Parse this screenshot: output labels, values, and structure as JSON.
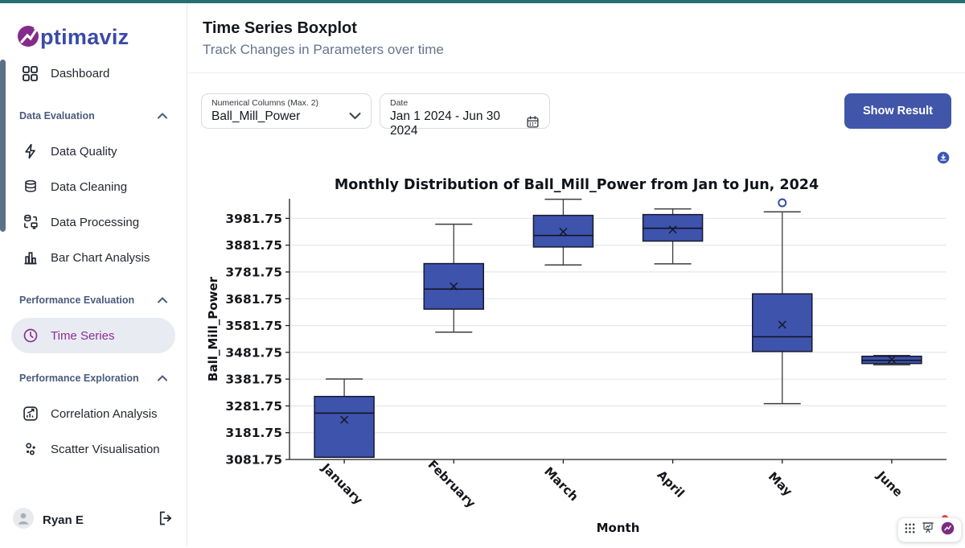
{
  "brand": {
    "name": "ptimaviz",
    "logo_icon": "optimaviz-logo"
  },
  "sidebar": {
    "dashboard_label": "Dashboard",
    "sections": [
      {
        "label": "Data Evaluation",
        "items": [
          {
            "label": "Data Quality",
            "icon": "zap-icon"
          },
          {
            "label": "Data Cleaning",
            "icon": "database-icon"
          },
          {
            "label": "Data Processing",
            "icon": "data-transfer-icon"
          },
          {
            "label": "Bar Chart Analysis",
            "icon": "bar-chart-icon"
          }
        ]
      },
      {
        "label": "Performance Evaluation",
        "items": [
          {
            "label": "Time Series",
            "icon": "clock-icon",
            "active": true
          }
        ]
      },
      {
        "label": "Performance Exploration",
        "items": [
          {
            "label": "Correlation Analysis",
            "icon": "correlation-icon"
          },
          {
            "label": "Scatter Visualisation",
            "icon": "scatter-icon"
          }
        ]
      }
    ],
    "user": {
      "name": "Ryan E",
      "logout_icon": "logout-icon"
    }
  },
  "header": {
    "title": "Time Series Boxplot",
    "subtitle": "Track Changes in Parameters over time"
  },
  "controls": {
    "numerical_columns": {
      "label": "Numerical Columns (Max. 2)",
      "value": "Ball_Mill_Power",
      "icon": "chevron-down-icon"
    },
    "date": {
      "label": "Date",
      "value": "Jan 1 2024 - Jun 30 2024",
      "icon": "calendar-icon"
    },
    "show_result_label": "Show Result",
    "download_icon": "download-icon"
  },
  "colors": {
    "topbar_teal": "#276e72",
    "brand_indigo": "#3b4aa8",
    "brand_purple": "#8a2f90",
    "button_blue": "#4156a8",
    "box_fill": "#3d53ac",
    "active_pill": "#e9ebf3"
  },
  "chart_data": {
    "type": "boxplot",
    "title": "Monthly Distribution of Ball_Mill_Power from Jan to Jun, 2024",
    "xlabel": "Month",
    "ylabel": "Ball_Mill_Power",
    "categories": [
      "January",
      "February",
      "March",
      "April",
      "May",
      "June"
    ],
    "yticks": [
      3081.75,
      3181.75,
      3281.75,
      3381.75,
      3481.75,
      3581.75,
      3681.75,
      3781.75,
      3881.75,
      3981.75
    ],
    "ylim": [
      3081.75,
      4055
    ],
    "grid": "horizontal",
    "box_color": "#3d53ac",
    "series": [
      {
        "month": "January",
        "whisker_low": 3090,
        "q1": 3090,
        "median": 3255,
        "q3": 3317,
        "whisker_high": 3382,
        "mean": 3230,
        "outliers": []
      },
      {
        "month": "February",
        "whisker_low": 3557,
        "q1": 3643,
        "median": 3718,
        "q3": 3813,
        "whisker_high": 3960,
        "mean": 3728,
        "outliers": []
      },
      {
        "month": "March",
        "whisker_low": 3808,
        "q1": 3875,
        "median": 3918,
        "q3": 3993,
        "whisker_high": 4053,
        "mean": 3932,
        "outliers": []
      },
      {
        "month": "April",
        "whisker_low": 3812,
        "q1": 3897,
        "median": 3945,
        "q3": 3996,
        "whisker_high": 4017,
        "mean": 3940,
        "outliers": []
      },
      {
        "month": "May",
        "whisker_low": 3290,
        "q1": 3485,
        "median": 3540,
        "q3": 3700,
        "whisker_high": 4006,
        "mean": 3585,
        "outliers": [
          4040
        ]
      },
      {
        "month": "June",
        "whisker_low": 3435,
        "q1": 3440,
        "median": 3452,
        "q3": 3467,
        "whisker_high": 3470,
        "mean": 3455,
        "outliers": []
      }
    ]
  }
}
